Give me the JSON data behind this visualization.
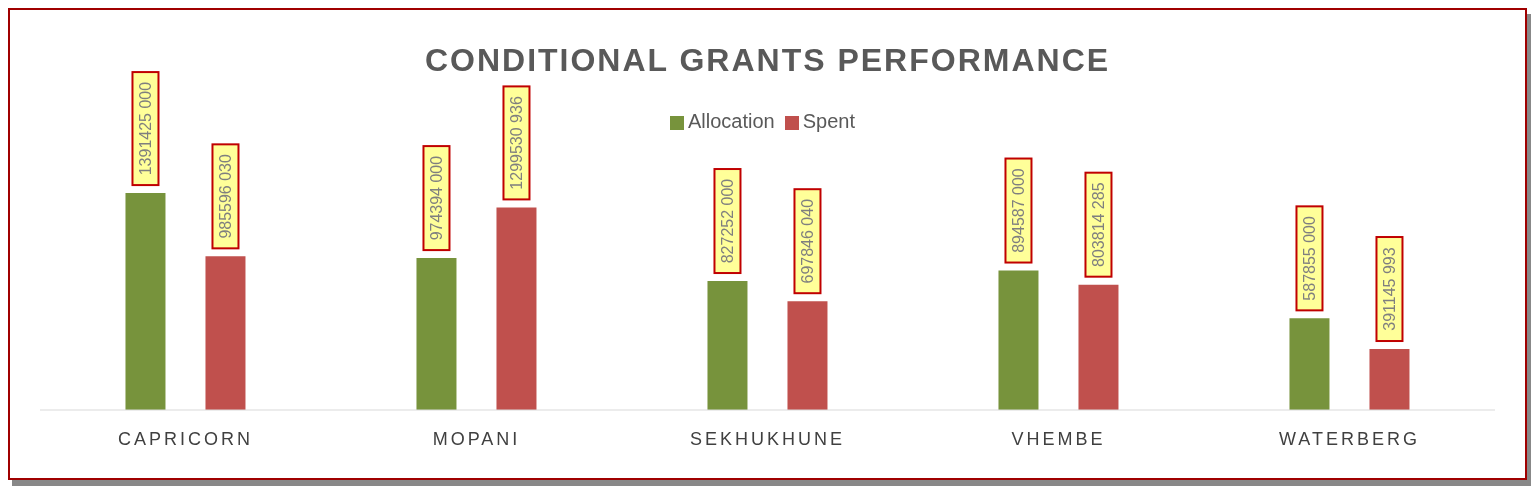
{
  "chart_data": {
    "type": "bar",
    "title": "CONDITIONAL GRANTS PERFORMANCE",
    "categories": [
      "CAPRICORN",
      "MOPANI",
      "SEKHUKHUNE",
      "VHEMBE",
      "WATERBERG"
    ],
    "series": [
      {
        "name": "Allocation",
        "color": "#77933c",
        "values": [
          1391425000,
          974394000,
          827252000,
          894587000,
          587855000
        ],
        "value_labels": [
          "1391425 000",
          "974394 000",
          "827252 000",
          "894587 000",
          "587855 000"
        ]
      },
      {
        "name": "Spent",
        "color": "#c0504d",
        "values": [
          985596030,
          1299530936,
          697846040,
          803814285,
          391145993
        ],
        "value_labels": [
          "985596 030",
          "1299530 936",
          "697846 040",
          "803814 285",
          "391145 993"
        ]
      }
    ],
    "legend": "top"
  }
}
